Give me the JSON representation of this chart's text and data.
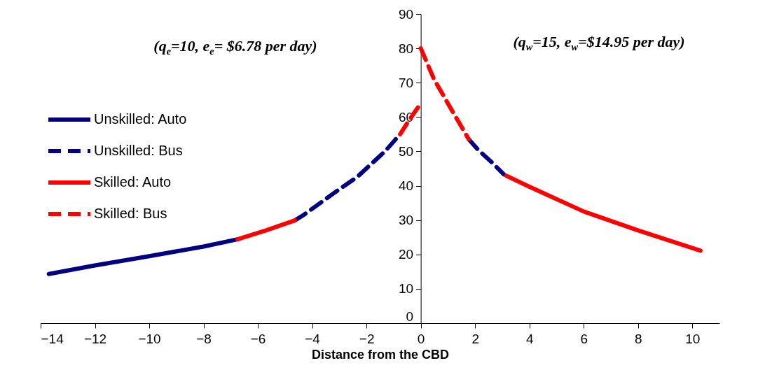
{
  "chart_data": {
    "type": "line",
    "xlabel": "Distance from the CBD",
    "xlim": [
      -14,
      11
    ],
    "xticks": [
      -14,
      -12,
      -10,
      -8,
      -6,
      -4,
      -2,
      0,
      2,
      4,
      6,
      8,
      10
    ],
    "ylim": [
      0,
      90
    ],
    "yticks": [
      0,
      10,
      20,
      30,
      40,
      50,
      60,
      70,
      80,
      90
    ],
    "grid": false,
    "legend": "top left",
    "marker": "none",
    "annotations": [
      "(q$_{e}$=10, e$_{e}$= $6.78 per day)",
      "(q$_{w}$=15, e$_{w}$=$14.95 per day)"
    ],
    "series": [
      {
        "name": "Unskilled: Auto",
        "color": "#000080",
        "line_style": "solid",
        "x": [
          -13.7,
          -12,
          -10,
          -8,
          -6.75
        ],
        "values": [
          14.3,
          16.8,
          19.5,
          22.3,
          24.4
        ]
      },
      {
        "name": "Unskilled: Bus",
        "color": "#000080",
        "line_style": "dashed",
        "x": [
          -4.64,
          -4.33,
          -3.21,
          -2.35,
          -1.32,
          -0.76,
          0.5,
          1.77,
          2.12,
          2.63,
          3.06
        ],
        "values": [
          29.9,
          31.4,
          37.8,
          42.5,
          50.0,
          55.0,
          null,
          53.5,
          50.4,
          46.7,
          43.3
        ]
      },
      {
        "name": "Skilled: Auto",
        "color": "#ff0000",
        "line_style": "solid",
        "x": [
          -6.75,
          -5.7,
          -4.64,
          0,
          3.15,
          4,
          6,
          8,
          10.3
        ],
        "values": [
          24.4,
          27.0,
          29.9,
          null,
          42.9,
          39.7,
          32.5,
          27.0,
          21.1
        ]
      },
      {
        "name": "Skilled: Bus",
        "color": "#ff0000",
        "line_style": "dashed",
        "x": [
          -0.76,
          -0.42,
          -0.06,
          -0.03,
          0,
          0.48,
          1.17,
          1.77
        ],
        "values": [
          55.0,
          59.2,
          63.3,
          null,
          80,
          71.1,
          61.6,
          53.5
        ]
      }
    ]
  }
}
